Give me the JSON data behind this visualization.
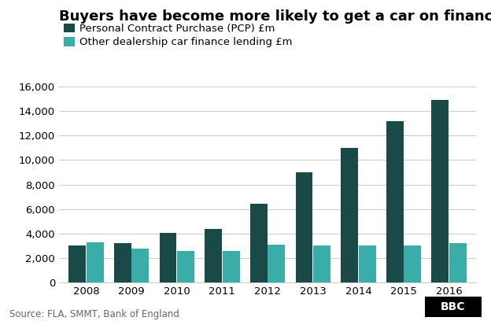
{
  "title": "Buyers have become more likely to get a car on finance",
  "years": [
    2008,
    2009,
    2010,
    2011,
    2012,
    2013,
    2014,
    2015,
    2016
  ],
  "pcp": [
    3000,
    3200,
    4050,
    4350,
    6400,
    9000,
    11000,
    13200,
    14900
  ],
  "other": [
    3300,
    2750,
    2600,
    2550,
    3100,
    3050,
    3050,
    3050,
    3200
  ],
  "pcp_color": "#1a4a47",
  "other_color": "#3aada8",
  "legend_pcp": "Personal Contract Purchase (PCP) £m",
  "legend_other": "Other dealership car finance lending £m",
  "source": "Source: FLA, SMMT, Bank of England",
  "bbc_label": "BBC",
  "ylim": [
    0,
    16000
  ],
  "yticks": [
    0,
    2000,
    4000,
    6000,
    8000,
    10000,
    12000,
    14000,
    16000
  ],
  "background_color": "#ffffff",
  "grid_color": "#cccccc",
  "title_fontsize": 13,
  "legend_fontsize": 9.5,
  "tick_fontsize": 9.5,
  "source_fontsize": 8.5
}
